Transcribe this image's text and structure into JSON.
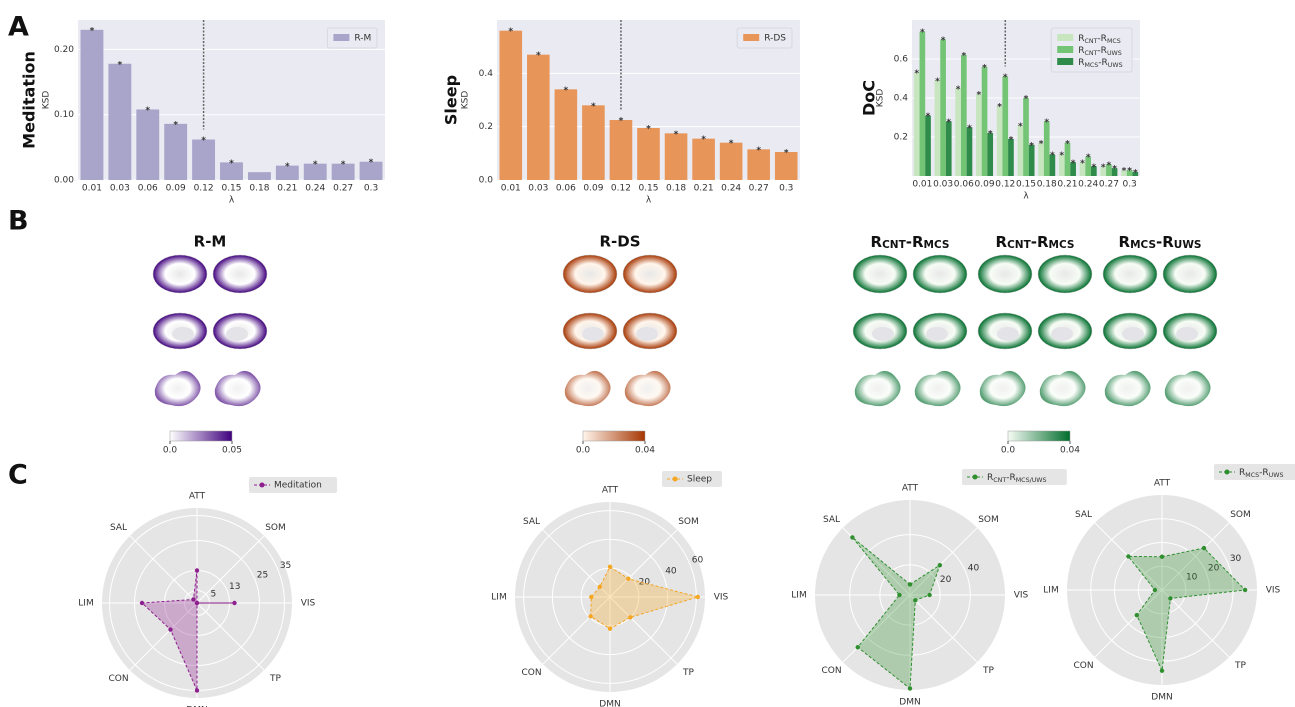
{
  "panel_labels": [
    "A",
    "B",
    "C"
  ],
  "chart_data": [
    {
      "type": "bar",
      "row_label": "Meditation",
      "ylabel": "KSD",
      "xlabel": "λ",
      "categories": [
        "0.01",
        "0.03",
        "0.06",
        "0.09",
        "0.12",
        "0.15",
        "0.18",
        "0.21",
        "0.24",
        "0.27",
        "0.3"
      ],
      "series": [
        {
          "name": "R-M",
          "color": "#a9a4ca",
          "values": [
            0.23,
            0.178,
            0.108,
            0.086,
            0.062,
            0.027,
            0.012,
            0.022,
            0.025,
            0.025,
            0.028
          ],
          "annotations": [
            "*",
            "*",
            "*",
            "*",
            "*",
            "*",
            null,
            "*",
            "*",
            "*",
            "*"
          ]
        }
      ],
      "ylim": [
        0,
        0.245
      ],
      "yticks": [
        {
          "value": 0,
          "label": "0.00"
        },
        {
          "value": 0.1,
          "label": "0.10"
        },
        {
          "value": 0.2,
          "label": "0.20"
        }
      ],
      "grid": true,
      "legend": "upper right",
      "vline_category": "0.12"
    },
    {
      "type": "bar",
      "row_label": "Sleep",
      "ylabel": "KSD",
      "xlabel": "λ",
      "categories": [
        "0.01",
        "0.03",
        "0.06",
        "0.09",
        "0.12",
        "0.15",
        "0.18",
        "0.21",
        "0.24",
        "0.27",
        "0.3"
      ],
      "series": [
        {
          "name": "R-DS",
          "color": "#e8955a",
          "values": [
            0.56,
            0.47,
            0.34,
            0.28,
            0.225,
            0.195,
            0.175,
            0.155,
            0.14,
            0.115,
            0.105
          ],
          "annotations": [
            "*",
            "*",
            "*",
            "*",
            "*",
            "*",
            "*",
            "*",
            "*",
            "*",
            "*"
          ]
        }
      ],
      "ylim": [
        0,
        0.6
      ],
      "yticks": [
        {
          "value": 0,
          "label": "0.0"
        },
        0.2,
        0.4
      ],
      "grid": true,
      "legend": "upper right",
      "vline_category": "0.12"
    },
    {
      "type": "bar",
      "row_label": "DoC",
      "ylabel": "KSD",
      "xlabel": "λ",
      "categories": [
        "0.01",
        "0.03",
        "0.06",
        "0.09",
        "0.12",
        "0.15",
        "0.18",
        "0.21",
        "0.24",
        "0.27",
        "0.3"
      ],
      "series": [
        {
          "name": "RCNT-RMCS",
          "color": "#c7e6c0",
          "values": [
            0.53,
            0.49,
            0.45,
            0.42,
            0.36,
            0.26,
            0.17,
            0.11,
            0.07,
            0.05,
            0.03
          ],
          "annotations": [
            "*",
            "*",
            "*",
            "*",
            "*",
            "*",
            "*",
            "*",
            "*",
            "*",
            "*"
          ]
        },
        {
          "name": "RCNT-RUWS",
          "color": "#74c476",
          "values": [
            0.74,
            0.7,
            0.62,
            0.56,
            0.51,
            0.4,
            0.28,
            0.17,
            0.1,
            0.06,
            0.03
          ],
          "annotations": [
            "*",
            "*",
            "*",
            "*",
            "*",
            "*",
            "*",
            "*",
            "*",
            "*",
            "*"
          ]
        },
        {
          "name": "RMCS-RUWS",
          "color": "#2e8b4a",
          "values": [
            0.31,
            0.28,
            0.25,
            0.22,
            0.19,
            0.16,
            0.11,
            0.07,
            0.05,
            0.04,
            0.02
          ],
          "annotations": [
            "*",
            "*",
            "*",
            "*",
            "*",
            "*",
            "*",
            "*",
            "*",
            "*",
            "*"
          ]
        }
      ],
      "ylim": [
        0,
        0.8
      ],
      "yticks": [
        0.2,
        0.4,
        0.6
      ],
      "grid": true,
      "legend": "upper right",
      "vline_category": "0.12"
    },
    {
      "type": "radar",
      "axes": [
        "ATT",
        "SOM",
        "VIS",
        "TP",
        "DMN",
        "CON",
        "LIM",
        "SAL"
      ],
      "series": [
        {
          "name": "Meditation",
          "color": "#8e1f8e",
          "values": [
            13,
            0,
            15,
            0,
            35,
            15,
            22,
            2
          ]
        }
      ],
      "rlim": [
        0,
        38
      ],
      "rticks": [
        5,
        13,
        25,
        35
      ],
      "legend": "upper right"
    },
    {
      "type": "radar",
      "axes": [
        "ATT",
        "SOM",
        "VIS",
        "TP",
        "DMN",
        "CON",
        "LIM",
        "SAL"
      ],
      "series": [
        {
          "name": "Sleep",
          "color": "#f5a623",
          "values": [
            21,
            18,
            61,
            20,
            22,
            19,
            13,
            10
          ]
        }
      ],
      "rlim": [
        0,
        66
      ],
      "rticks": [
        20,
        40,
        60
      ],
      "legend": "upper right"
    },
    {
      "type": "radar",
      "axes": [
        "ATT",
        "SOM",
        "VIS",
        "TP",
        "DMN",
        "CON",
        "LIM",
        "SAL"
      ],
      "series": [
        {
          "name": "RCNT-RMCS/UWS",
          "color": "#2f8f2f",
          "values": [
            7,
            28,
            13,
            5,
            62,
            49,
            7,
            54
          ]
        }
      ],
      "rlim": [
        0,
        63
      ],
      "rticks": [
        20,
        40
      ],
      "legend": "upper right"
    },
    {
      "type": "radar",
      "axes": [
        "ATT",
        "SOM",
        "VIS",
        "TP",
        "DMN",
        "CON",
        "LIM",
        "SAL"
      ],
      "series": [
        {
          "name": "RMCS-RUWS",
          "color": "#2f8f2f",
          "values": [
            14,
            25,
            35,
            5,
            34,
            15,
            3,
            20
          ]
        }
      ],
      "rlim": [
        0,
        40
      ],
      "rticks": [
        10,
        20,
        30
      ],
      "legend": "upper right"
    }
  ],
  "panel_b": {
    "groups": [
      {
        "title": "R-M",
        "colorbar": 0
      },
      {
        "title": "R-DS",
        "colorbar": 1
      },
      {
        "title": "RCNT-RMCS",
        "colorbar": 2
      },
      {
        "title": "RCNT-RMCS",
        "colorbar": 2
      },
      {
        "title": "RMCS-RUWS",
        "colorbar": 2
      }
    ],
    "colorbars": [
      {
        "ticks": [
          {
            "value": 0,
            "label": "0.0"
          },
          0.05
        ],
        "colors": [
          "#ffffff",
          "#3f007d"
        ]
      },
      {
        "ticks": [
          {
            "value": 0,
            "label": "0.0"
          },
          0.04
        ],
        "colors": [
          "#fff5eb",
          "#a63603"
        ]
      },
      {
        "ticks": [
          {
            "value": 0,
            "label": "0.0"
          },
          0.04
        ],
        "colors": [
          "#f7fcf5",
          "#006d2c"
        ]
      }
    ]
  }
}
